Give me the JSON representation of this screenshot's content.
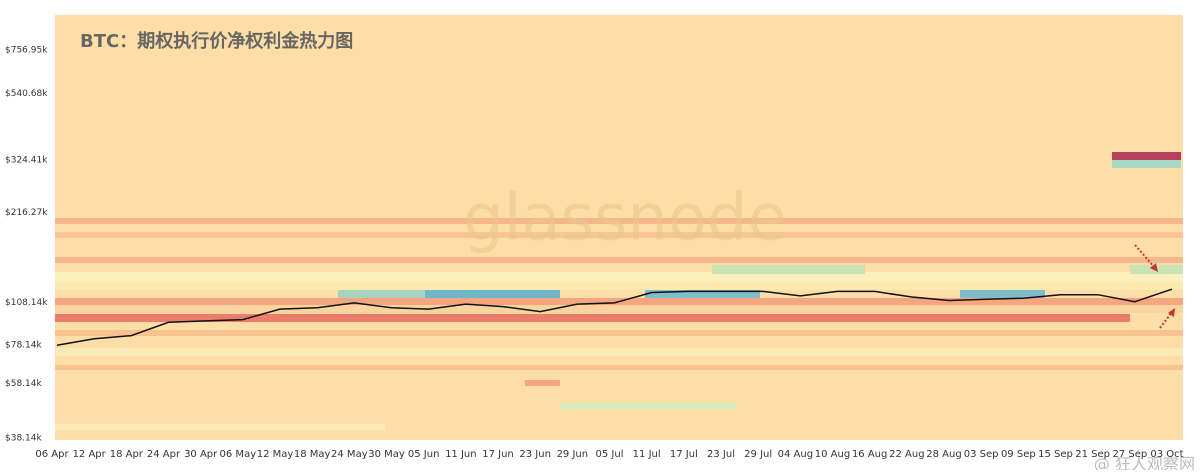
{
  "chart_data": {
    "type": "line",
    "title": "BTC：期权执行价净权利金热力图",
    "watermark": "glassnode",
    "credit": "@ 狂人观察网",
    "categories": [
      "06 Apr",
      "12 Apr",
      "18 Apr",
      "24 Apr",
      "30 Apr",
      "06 May",
      "12 May",
      "18 May",
      "24 May",
      "30 May",
      "05 Jun",
      "11 Jun",
      "17 Jun",
      "23 Jun",
      "29 Jun",
      "05 Jul",
      "11 Jul",
      "17 Jul",
      "23 Jul",
      "29 Jul",
      "04 Aug",
      "10 Aug",
      "16 Aug",
      "22 Aug",
      "28 Aug",
      "03 Sep",
      "09 Sep",
      "15 Sep",
      "21 Sep",
      "27 Sep",
      "03 Oct"
    ],
    "values": [
      78000,
      82000,
      84000,
      93000,
      94000,
      95000,
      103000,
      104000,
      108000,
      104000,
      103000,
      107000,
      105000,
      101000,
      107000,
      108000,
      117000,
      118000,
      118000,
      118000,
      114000,
      118000,
      118000,
      113000,
      110000,
      111000,
      112000,
      115000,
      115000,
      109000,
      120000
    ],
    "color": "#111111",
    "log_scale": true,
    "ylim": [
      37600,
      990000
    ],
    "yticks": [
      {
        "value": 38140,
        "label": "$38.14k"
      },
      {
        "value": 58140,
        "label": "$58.14k"
      },
      {
        "value": 78140,
        "label": "$78.14k"
      },
      {
        "value": 108140,
        "label": "$108.14k"
      },
      {
        "value": 216270,
        "label": "$216.27k"
      },
      {
        "value": 324410,
        "label": "$324.41k"
      },
      {
        "value": 540680,
        "label": "$540.68k"
      },
      {
        "value": 756950,
        "label": "$756.95k"
      }
    ]
  }
}
